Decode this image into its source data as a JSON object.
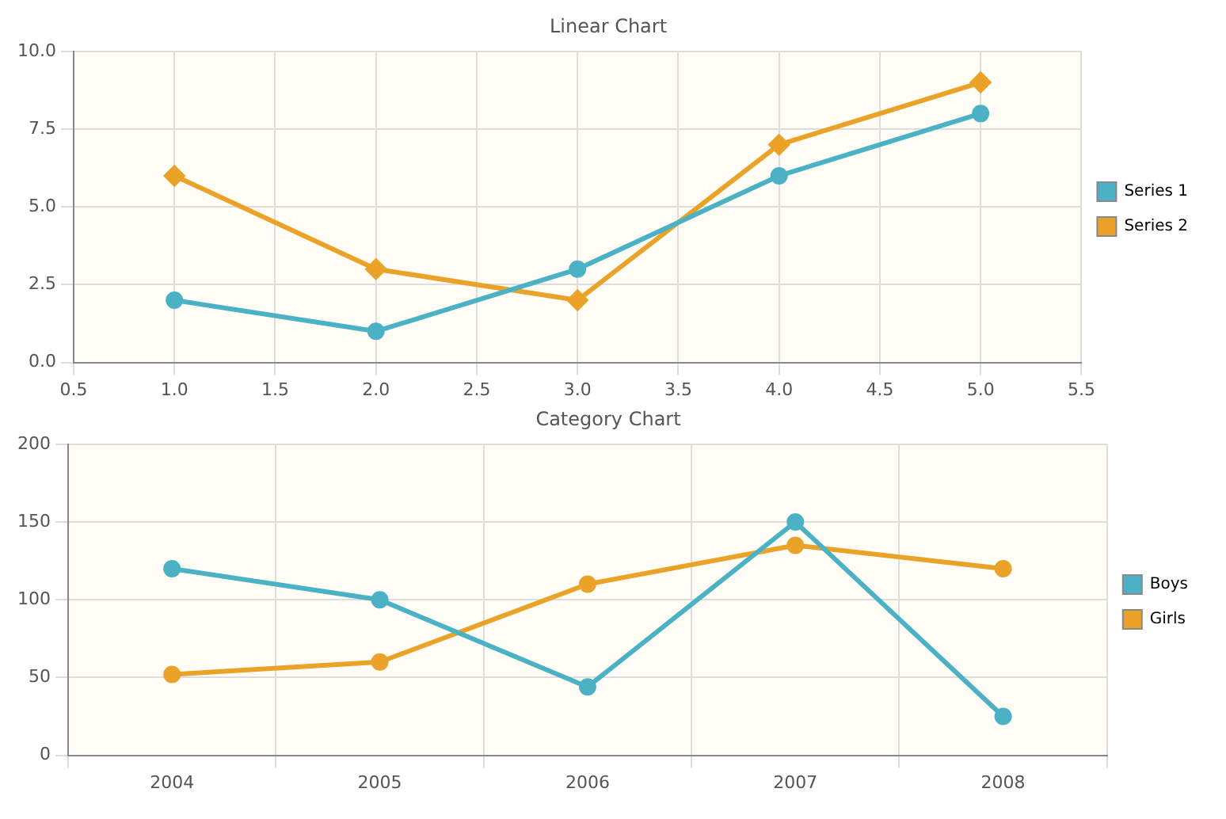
{
  "chart_data": [
    {
      "type": "line",
      "title": "Linear Chart",
      "x": [
        1,
        2,
        3,
        4,
        5
      ],
      "xlim": [
        0.5,
        5.5
      ],
      "xticks": [
        {
          "value": 0.5,
          "label": "0.5"
        },
        {
          "value": 1,
          "label": "1.0"
        },
        {
          "value": 1.5,
          "label": "1.5"
        },
        {
          "value": 2,
          "label": "2.0"
        },
        {
          "value": 2.5,
          "label": "2.5"
        },
        {
          "value": 3,
          "label": "3.0"
        },
        {
          "value": 3.5,
          "label": "3.5"
        },
        {
          "value": 4,
          "label": "4.0"
        },
        {
          "value": 4.5,
          "label": "4.5"
        },
        {
          "value": 5,
          "label": "5.0"
        },
        {
          "value": 5.5,
          "label": "5.5"
        }
      ],
      "ylim": [
        0,
        10
      ],
      "yticks": [
        {
          "value": 0,
          "label": "0.0"
        },
        {
          "value": 2.5,
          "label": "2.5"
        },
        {
          "value": 5,
          "label": "5.0"
        },
        {
          "value": 7.5,
          "label": "7.5"
        },
        {
          "value": 10,
          "label": "10.0"
        }
      ],
      "grid": true,
      "legend": "right",
      "marker": "circle",
      "series": [
        {
          "name": "Series 1",
          "color": "#4bb2c5",
          "values": [
            2,
            1,
            3,
            6,
            8
          ]
        },
        {
          "name": "Series 2",
          "color": "#eaa228",
          "marker": "diamond",
          "values": [
            6,
            3,
            2,
            7,
            9
          ]
        }
      ]
    },
    {
      "type": "line",
      "title": "Category Chart",
      "categories": [
        "2004",
        "2005",
        "2006",
        "2007",
        "2008"
      ],
      "ylim": [
        0,
        200
      ],
      "yticks": [
        0,
        50,
        100,
        150,
        200
      ],
      "grid": true,
      "legend": "right",
      "marker": "circle",
      "series": [
        {
          "name": "Boys",
          "color": "#4bb2c5",
          "values": [
            120,
            100,
            44,
            150,
            25
          ]
        },
        {
          "name": "Girls",
          "color": "#eaa228",
          "values": [
            52,
            60,
            110,
            135,
            120
          ]
        }
      ]
    }
  ]
}
